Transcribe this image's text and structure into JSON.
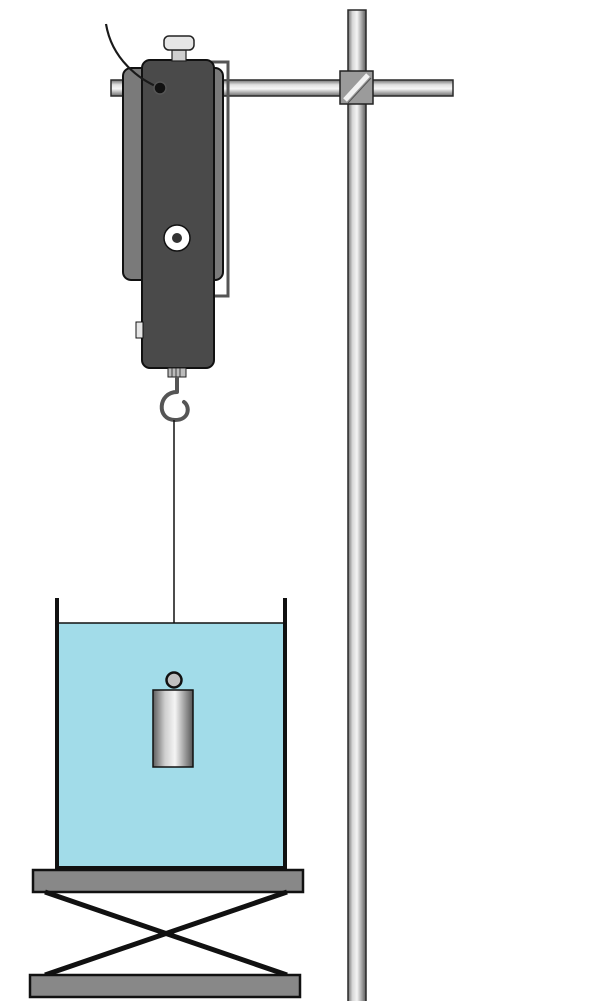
{
  "scene": {
    "components": {
      "stand_rod": "vertical-stand-rod",
      "cross_rod": "horizontal-cross-rod",
      "clamp": "rod-clamp",
      "sensor": "force-sensor",
      "hook": "sensor-hook",
      "string": "suspension-string",
      "weight": "cylindrical-mass",
      "beaker": "beaker",
      "liquid": "water",
      "lab_jack": "lab-jack"
    },
    "colors": {
      "background": "#ffffff",
      "water": "#a2dce9",
      "sensor_body": "#4a4a4a",
      "sensor_back": "#7a7a7a",
      "jack_plate": "#888888",
      "outline": "#000000"
    }
  }
}
